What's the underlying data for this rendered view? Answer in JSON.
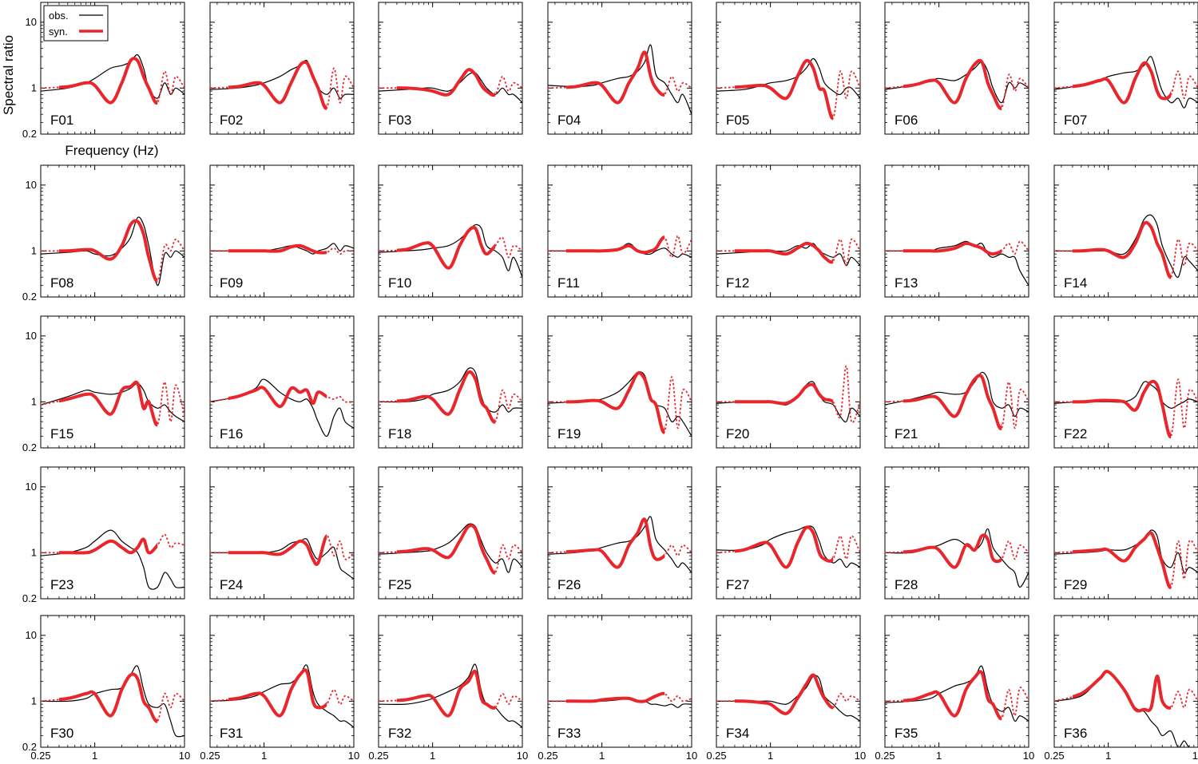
{
  "chart_data": {
    "type": "line",
    "ylabel": "Spectral ratio",
    "xlabel": "Frequency (Hz)",
    "xscale": "log",
    "yscale": "log",
    "xlim": [
      0.25,
      10
    ],
    "ylim": [
      0.2,
      20
    ],
    "x_ticks": [
      "0.25",
      "1",
      "10"
    ],
    "y_ticks": [
      "0.2",
      "1",
      "10"
    ],
    "legend": {
      "placement": "top-left of first panel",
      "obs_label": "obs.",
      "syn_label": "syn.",
      "obs_color": "#000000",
      "syn_color": "#e8262c"
    },
    "grid": false,
    "layout": {
      "rows": 5,
      "cols": 7
    },
    "x": [
      0.25,
      0.5,
      0.8,
      1.0,
      1.5,
      2.0,
      2.5,
      3.0,
      3.5,
      4.0,
      5.0,
      6.0,
      7.0,
      8.0,
      10.0
    ],
    "syn_solid_range": [
      0.4,
      5.0
    ],
    "panels": [
      {
        "label": "F01",
        "obs": [
          0.9,
          1.0,
          1.2,
          1.4,
          2.0,
          2.2,
          2.5,
          3.2,
          2.0,
          1.0,
          0.7,
          1.2,
          0.8,
          1.0,
          0.8
        ],
        "syn": [
          1.0,
          1.05,
          1.2,
          1.1,
          0.6,
          1.2,
          2.6,
          2.6,
          1.5,
          1.0,
          0.6,
          1.8,
          0.8,
          1.5,
          1.0
        ]
      },
      {
        "label": "F02",
        "obs": [
          0.95,
          1.0,
          1.1,
          1.2,
          1.5,
          1.9,
          2.2,
          2.6,
          1.5,
          1.0,
          0.8,
          1.0,
          0.7,
          0.8,
          0.8
        ],
        "syn": [
          1.0,
          1.05,
          1.2,
          1.1,
          0.6,
          1.2,
          2.2,
          2.4,
          1.5,
          1.0,
          0.5,
          2.0,
          0.6,
          1.5,
          1.0
        ]
      },
      {
        "label": "F03",
        "obs": [
          0.9,
          0.95,
          1.0,
          1.0,
          0.9,
          1.2,
          1.6,
          1.7,
          1.3,
          1.0,
          0.8,
          1.0,
          0.8,
          0.8,
          0.6
        ],
        "syn": [
          1.0,
          1.0,
          0.95,
          0.9,
          0.8,
          1.3,
          1.9,
          1.6,
          1.1,
          0.9,
          0.8,
          1.5,
          0.9,
          1.2,
          1.0
        ]
      },
      {
        "label": "F04",
        "obs": [
          1.1,
          1.05,
          1.1,
          1.2,
          1.4,
          1.5,
          1.8,
          2.5,
          4.5,
          1.6,
          1.2,
          0.8,
          0.6,
          0.8,
          0.4
        ],
        "syn": [
          1.0,
          1.05,
          1.2,
          1.1,
          0.6,
          1.2,
          2.0,
          3.5,
          1.5,
          1.0,
          0.8,
          1.5,
          0.9,
          1.2,
          1.0
        ]
      },
      {
        "label": "F05",
        "obs": [
          0.9,
          0.95,
          1.1,
          1.2,
          1.3,
          1.5,
          2.0,
          2.8,
          2.0,
          1.2,
          0.9,
          0.8,
          1.0,
          1.0,
          0.7
        ],
        "syn": [
          1.0,
          1.05,
          1.1,
          1.0,
          0.7,
          1.5,
          2.6,
          2.0,
          1.0,
          0.9,
          0.35,
          1.8,
          0.7,
          1.8,
          1.0
        ]
      },
      {
        "label": "F06",
        "obs": [
          0.95,
          1.1,
          1.3,
          1.4,
          1.3,
          1.6,
          2.0,
          2.5,
          1.8,
          1.0,
          0.6,
          1.2,
          1.0,
          1.2,
          1.0
        ],
        "syn": [
          1.0,
          1.1,
          1.3,
          1.2,
          0.6,
          1.4,
          2.3,
          2.5,
          1.2,
          0.8,
          0.5,
          1.6,
          0.9,
          1.4,
          1.0
        ]
      },
      {
        "label": "F07",
        "obs": [
          0.95,
          1.1,
          1.3,
          1.5,
          1.7,
          1.8,
          2.2,
          3.0,
          1.6,
          0.9,
          0.6,
          0.7,
          0.5,
          0.7,
          0.6
        ],
        "syn": [
          1.0,
          1.1,
          1.3,
          1.3,
          0.6,
          1.4,
          2.4,
          1.8,
          0.9,
          0.7,
          0.8,
          1.8,
          0.7,
          1.5,
          1.0
        ]
      },
      {
        "label": "F08",
        "obs": [
          0.9,
          0.95,
          1.0,
          0.9,
          0.85,
          1.1,
          1.6,
          3.2,
          2.5,
          1.2,
          0.3,
          0.9,
          0.8,
          1.0,
          0.8
        ],
        "syn": [
          1.0,
          1.0,
          1.05,
          1.0,
          0.75,
          1.2,
          2.5,
          2.8,
          1.8,
          0.8,
          0.35,
          1.2,
          1.0,
          1.5,
          1.0
        ]
      },
      {
        "label": "F09",
        "obs": [
          1.0,
          1.0,
          1.0,
          1.0,
          1.1,
          1.2,
          1.1,
          1.0,
          0.9,
          1.0,
          1.1,
          1.3,
          1.0,
          1.2,
          1.1
        ],
        "syn": [
          1.0,
          1.0,
          1.0,
          1.0,
          1.0,
          1.15,
          1.2,
          1.1,
          1.0,
          0.95,
          0.95,
          1.1,
          0.9,
          1.0,
          1.0
        ]
      },
      {
        "label": "F10",
        "obs": [
          0.95,
          1.0,
          1.05,
          1.1,
          1.2,
          1.5,
          2.0,
          2.5,
          2.2,
          1.2,
          1.0,
          0.8,
          0.5,
          0.8,
          0.4
        ],
        "syn": [
          1.0,
          1.05,
          1.3,
          1.2,
          0.55,
          1.2,
          2.0,
          2.2,
          1.2,
          0.9,
          1.2,
          1.6,
          0.8,
          1.2,
          1.0
        ]
      },
      {
        "label": "F11",
        "obs": [
          1.0,
          1.0,
          1.0,
          1.0,
          1.05,
          1.3,
          1.0,
          0.9,
          0.9,
          1.0,
          1.1,
          0.9,
          0.8,
          0.9,
          0.8
        ],
        "syn": [
          1.0,
          1.0,
          1.0,
          1.0,
          1.05,
          1.2,
          1.0,
          0.95,
          1.0,
          1.1,
          1.6,
          0.8,
          1.7,
          0.9,
          1.5
        ]
      },
      {
        "label": "F12",
        "obs": [
          0.9,
          0.95,
          1.0,
          1.0,
          1.0,
          1.2,
          1.1,
          1.3,
          1.0,
          0.9,
          0.8,
          0.9,
          0.6,
          0.8,
          0.6
        ],
        "syn": [
          1.0,
          1.0,
          1.0,
          1.0,
          0.9,
          1.1,
          1.3,
          1.2,
          1.0,
          0.8,
          0.7,
          1.5,
          0.6,
          1.5,
          1.0
        ]
      },
      {
        "label": "F13",
        "obs": [
          1.0,
          1.0,
          1.0,
          1.1,
          1.2,
          1.4,
          1.2,
          1.3,
          0.9,
          0.8,
          0.9,
          0.8,
          0.8,
          0.5,
          0.3
        ],
        "syn": [
          1.0,
          1.0,
          1.0,
          1.0,
          1.1,
          1.3,
          1.2,
          1.1,
          0.95,
          0.9,
          1.0,
          1.3,
          0.9,
          1.4,
          1.0
        ]
      },
      {
        "label": "F14",
        "obs": [
          1.0,
          1.0,
          1.0,
          1.0,
          0.9,
          1.5,
          3.0,
          3.5,
          2.5,
          1.2,
          0.6,
          0.4,
          0.8,
          0.7,
          0.5
        ],
        "syn": [
          1.0,
          1.0,
          1.05,
          1.0,
          0.8,
          1.3,
          2.6,
          2.3,
          1.3,
          0.9,
          0.4,
          1.5,
          0.6,
          1.3,
          1.0
        ]
      },
      {
        "label": "F15",
        "obs": [
          0.9,
          1.2,
          1.5,
          1.4,
          1.3,
          1.4,
          1.6,
          1.9,
          1.5,
          1.0,
          0.8,
          0.9,
          0.7,
          0.6,
          0.5
        ],
        "syn": [
          0.9,
          1.1,
          1.3,
          1.2,
          0.65,
          1.5,
          1.7,
          1.9,
          0.8,
          1.0,
          0.45,
          2.0,
          0.5,
          1.8,
          0.6
        ]
      },
      {
        "label": "F16",
        "obs": [
          1.0,
          1.2,
          1.6,
          2.2,
          1.4,
          1.1,
          1.0,
          1.1,
          0.8,
          0.5,
          0.3,
          0.6,
          0.8,
          0.5,
          0.4
        ],
        "syn": [
          1.0,
          1.2,
          1.5,
          1.6,
          0.85,
          1.6,
          1.4,
          1.5,
          0.95,
          1.4,
          1.2,
          1.1,
          1.2,
          1.0,
          1.0
        ]
      },
      {
        "label": "F18",
        "obs": [
          1.0,
          1.0,
          1.1,
          1.3,
          1.5,
          2.0,
          3.2,
          2.8,
          1.2,
          0.8,
          0.7,
          0.9,
          0.7,
          0.8,
          0.8
        ],
        "syn": [
          1.0,
          1.05,
          1.2,
          1.1,
          0.65,
          1.5,
          2.8,
          2.2,
          1.0,
          0.8,
          0.5,
          1.5,
          0.8,
          1.3,
          1.0
        ]
      },
      {
        "label": "F19",
        "obs": [
          0.95,
          1.0,
          1.05,
          1.1,
          1.4,
          2.0,
          2.8,
          2.5,
          1.2,
          0.9,
          0.8,
          0.5,
          0.6,
          0.5,
          0.3
        ],
        "syn": [
          1.0,
          1.0,
          1.05,
          1.0,
          0.8,
          1.5,
          2.7,
          2.2,
          1.1,
          0.9,
          0.35,
          2.4,
          0.4,
          1.5,
          1.0
        ]
      },
      {
        "label": "F20",
        "obs": [
          0.95,
          1.0,
          1.0,
          1.0,
          0.9,
          1.2,
          1.8,
          2.0,
          1.3,
          1.0,
          0.9,
          0.6,
          0.5,
          0.8,
          0.6
        ],
        "syn": [
          1.0,
          1.0,
          1.0,
          1.0,
          0.95,
          1.2,
          1.7,
          1.8,
          1.3,
          1.1,
          1.0,
          0.6,
          3.5,
          0.5,
          1.0
        ]
      },
      {
        "label": "F21",
        "obs": [
          0.9,
          1.1,
          1.3,
          1.4,
          1.3,
          1.4,
          2.0,
          2.8,
          2.2,
          1.0,
          0.8,
          0.9,
          0.6,
          0.8,
          0.7
        ],
        "syn": [
          1.0,
          1.05,
          1.2,
          1.1,
          0.6,
          1.3,
          2.2,
          2.4,
          1.2,
          0.8,
          0.4,
          2.0,
          0.4,
          1.5,
          1.0
        ]
      },
      {
        "label": "F22",
        "obs": [
          0.95,
          1.0,
          1.0,
          1.0,
          1.0,
          1.2,
          2.0,
          1.8,
          1.5,
          1.0,
          0.8,
          0.9,
          1.0,
          1.1,
          1.0
        ],
        "syn": [
          1.0,
          1.0,
          1.05,
          1.05,
          1.0,
          0.75,
          1.4,
          2.0,
          1.8,
          0.9,
          0.3,
          2.2,
          0.4,
          1.5,
          1.0
        ]
      },
      {
        "label": "F23",
        "obs": [
          0.9,
          1.0,
          1.2,
          1.5,
          2.2,
          1.5,
          1.2,
          1.0,
          0.6,
          0.3,
          0.3,
          0.5,
          0.4,
          0.3,
          0.3
        ],
        "syn": [
          1.0,
          1.0,
          1.0,
          1.1,
          1.5,
          1.2,
          1.0,
          1.2,
          1.6,
          1.0,
          1.3,
          1.9,
          1.2,
          1.4,
          1.3
        ]
      },
      {
        "label": "F24",
        "obs": [
          1.0,
          1.0,
          1.0,
          1.0,
          1.1,
          1.4,
          1.5,
          1.6,
          1.0,
          0.8,
          1.0,
          1.2,
          0.6,
          0.5,
          0.4
        ],
        "syn": [
          1.0,
          1.0,
          1.0,
          1.0,
          0.95,
          1.2,
          1.5,
          1.3,
          0.8,
          0.7,
          1.8,
          0.9,
          1.5,
          0.8,
          1.0
        ]
      },
      {
        "label": "F25",
        "obs": [
          0.95,
          1.0,
          1.05,
          1.1,
          1.4,
          2.0,
          2.7,
          2.5,
          1.5,
          1.0,
          0.7,
          0.8,
          0.5,
          0.8,
          0.6
        ],
        "syn": [
          1.0,
          1.05,
          1.15,
          1.1,
          0.85,
          1.5,
          2.5,
          2.3,
          1.2,
          0.8,
          0.5,
          1.3,
          0.8,
          1.3,
          1.0
        ]
      },
      {
        "label": "F26",
        "obs": [
          0.95,
          1.0,
          1.1,
          1.2,
          1.4,
          1.5,
          1.8,
          2.5,
          3.5,
          1.6,
          1.1,
          0.8,
          0.6,
          0.7,
          0.5
        ],
        "syn": [
          1.0,
          1.05,
          1.1,
          1.05,
          0.6,
          1.3,
          2.0,
          3.2,
          1.2,
          0.8,
          0.9,
          1.3,
          0.9,
          1.3,
          1.0
        ]
      },
      {
        "label": "F27",
        "obs": [
          1.1,
          1.1,
          1.3,
          1.6,
          2.0,
          2.2,
          2.5,
          2.4,
          1.5,
          0.9,
          0.7,
          0.8,
          0.6,
          0.7,
          0.6
        ],
        "syn": [
          1.0,
          1.1,
          1.4,
          1.3,
          0.6,
          1.4,
          2.4,
          2.0,
          1.0,
          0.8,
          0.8,
          1.8,
          0.8,
          1.8,
          1.0
        ]
      },
      {
        "label": "F28",
        "obs": [
          1.0,
          1.0,
          1.2,
          1.3,
          1.6,
          1.3,
          1.1,
          1.4,
          2.3,
          1.2,
          0.8,
          0.6,
          0.5,
          0.3,
          0.5
        ],
        "syn": [
          1.0,
          1.05,
          1.2,
          1.1,
          0.6,
          1.3,
          1.1,
          1.8,
          1.6,
          0.8,
          0.8,
          1.5,
          0.8,
          1.3,
          1.0
        ]
      },
      {
        "label": "F29",
        "obs": [
          0.95,
          1.0,
          1.05,
          1.1,
          1.1,
          1.3,
          1.6,
          2.2,
          1.8,
          0.8,
          0.6,
          1.0,
          0.5,
          0.6,
          0.5
        ],
        "syn": [
          1.0,
          1.05,
          1.1,
          1.1,
          0.75,
          1.2,
          1.6,
          2.0,
          1.2,
          0.7,
          0.3,
          1.5,
          0.4,
          1.5,
          1.0
        ]
      },
      {
        "label": "F30",
        "obs": [
          1.0,
          1.0,
          1.1,
          1.3,
          1.5,
          1.6,
          2.5,
          3.4,
          1.5,
          0.9,
          0.8,
          0.9,
          0.5,
          0.3,
          0.3
        ],
        "syn": [
          1.0,
          1.1,
          1.3,
          1.3,
          0.6,
          1.5,
          2.5,
          2.2,
          1.0,
          0.8,
          0.5,
          1.3,
          0.8,
          1.3,
          1.0
        ]
      },
      {
        "label": "F31",
        "obs": [
          1.0,
          1.05,
          1.2,
          1.4,
          1.8,
          1.9,
          2.5,
          3.5,
          1.4,
          0.9,
          0.7,
          0.6,
          0.5,
          0.5,
          0.4
        ],
        "syn": [
          1.0,
          1.1,
          1.3,
          1.2,
          0.6,
          1.5,
          2.5,
          2.8,
          1.0,
          0.8,
          0.9,
          1.5,
          0.9,
          1.2,
          1.0
        ]
      },
      {
        "label": "F32",
        "obs": [
          0.9,
          0.9,
          1.0,
          1.1,
          1.4,
          1.7,
          2.3,
          3.6,
          1.4,
          0.9,
          0.8,
          0.6,
          0.5,
          0.5,
          0.4
        ],
        "syn": [
          1.0,
          1.05,
          1.2,
          1.15,
          0.6,
          1.5,
          2.0,
          2.8,
          1.1,
          0.9,
          0.8,
          1.3,
          0.9,
          1.2,
          1.0
        ]
      },
      {
        "label": "F33",
        "obs": [
          1.0,
          1.0,
          1.0,
          1.0,
          1.05,
          1.1,
          1.0,
          1.0,
          0.9,
          0.9,
          0.85,
          0.9,
          0.8,
          0.9,
          0.9
        ],
        "syn": [
          1.0,
          1.0,
          1.0,
          1.05,
          1.1,
          1.1,
          1.0,
          1.0,
          1.1,
          1.2,
          1.3,
          1.0,
          1.2,
          1.0,
          1.1
        ]
      },
      {
        "label": "F34",
        "obs": [
          1.0,
          1.0,
          1.0,
          1.0,
          0.9,
          1.2,
          1.6,
          2.4,
          2.2,
          1.2,
          0.9,
          0.7,
          0.6,
          0.6,
          0.5
        ],
        "syn": [
          1.0,
          1.0,
          0.95,
          0.9,
          0.65,
          1.1,
          1.8,
          2.5,
          1.6,
          1.1,
          0.8,
          1.3,
          1.0,
          1.2,
          1.0
        ]
      },
      {
        "label": "F35",
        "obs": [
          0.95,
          1.0,
          1.1,
          1.3,
          1.7,
          1.9,
          2.3,
          3.4,
          1.5,
          0.9,
          0.7,
          0.8,
          0.5,
          0.6,
          0.5
        ],
        "syn": [
          1.0,
          1.05,
          1.3,
          1.3,
          0.6,
          1.5,
          2.3,
          2.7,
          1.1,
          0.9,
          0.55,
          1.5,
          0.6,
          1.6,
          1.0
        ]
      },
      {
        "label": "F36",
        "obs": [
          1.0,
          1.2,
          2.2,
          2.7,
          1.5,
          0.8,
          0.7,
          0.5,
          0.4,
          0.3,
          0.35,
          0.2,
          0.25,
          0.2,
          0.2
        ],
        "syn": [
          1.0,
          1.3,
          2.2,
          2.8,
          1.5,
          0.75,
          0.75,
          0.8,
          2.4,
          1.0,
          0.8,
          1.4,
          0.8,
          1.5,
          1.0
        ]
      }
    ]
  }
}
